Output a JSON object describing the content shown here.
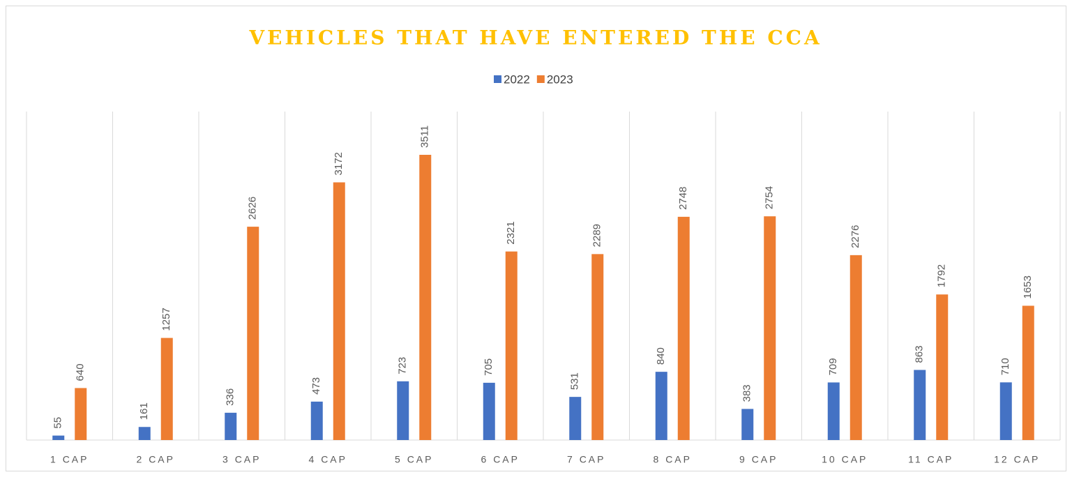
{
  "chart_data": {
    "type": "bar",
    "title": "VEHICLES THAT HAVE ENTERED THE CCA",
    "categories": [
      "1 CAP",
      "2 CAP",
      "3 CAP",
      "4 CAP",
      "5 CAP",
      "6 CAP",
      "7 CAP",
      "8 CAP",
      "9 CAP",
      "10 CAP",
      "11 CAP",
      "12 CAP"
    ],
    "series": [
      {
        "name": "2022",
        "color": "#4472C4",
        "values": [
          55,
          161,
          336,
          473,
          723,
          705,
          531,
          840,
          383,
          709,
          863,
          710
        ]
      },
      {
        "name": "2023",
        "color": "#ED7D31",
        "values": [
          640,
          1257,
          2626,
          3172,
          3511,
          2321,
          2289,
          2748,
          2754,
          2276,
          1792,
          1653
        ]
      }
    ],
    "legend": "top"
  }
}
